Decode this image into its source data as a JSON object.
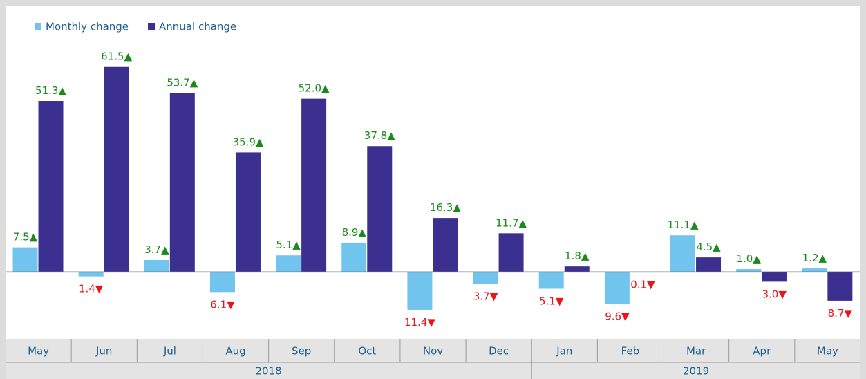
{
  "chart_data": {
    "type": "bar",
    "groups": [
      {
        "label": "2018",
        "categories": [
          "May",
          "Jun",
          "Jul",
          "Aug",
          "Sep",
          "Oct",
          "Nov",
          "Dec"
        ]
      },
      {
        "label": "2019",
        "categories": [
          "Jan",
          "Feb",
          "Mar",
          "Apr",
          "May"
        ]
      }
    ],
    "series": [
      {
        "name": "Monthly change",
        "color": "#70c4ee",
        "values": [
          7.5,
          -1.4,
          3.7,
          -6.1,
          5.1,
          8.9,
          -11.4,
          -3.7,
          -5.1,
          -9.6,
          11.1,
          1.0,
          1.2
        ],
        "value_labels": [
          "7.5▲",
          "1.4▼",
          "3.7▲",
          "6.1▼",
          "5.1▲",
          "8.9▲",
          "11.4▼",
          "3.7▼",
          "5.1▼",
          "9.6▼",
          "11.1▲",
          "1.0▲",
          "1.2▲"
        ]
      },
      {
        "name": "Annual change",
        "color": "#3b2f8f",
        "values": [
          51.3,
          61.5,
          53.7,
          35.9,
          52.0,
          37.8,
          16.3,
          11.7,
          1.8,
          -0.1,
          4.5,
          -3.0,
          -8.7
        ],
        "value_labels": [
          "51.3▲",
          "61.5▲",
          "53.7▲",
          "35.9▲",
          "52.0▲",
          "37.8▲",
          "16.3▲",
          "11.7▲",
          "1.8▲",
          "0.1▼",
          "4.5▲",
          "3.0▼",
          "8.7▼"
        ]
      }
    ],
    "ylim": [
      -20,
      69
    ],
    "positive_label_color": "#1a8a1a",
    "negative_label_color": "#e8151b",
    "legend": "top-left"
  }
}
